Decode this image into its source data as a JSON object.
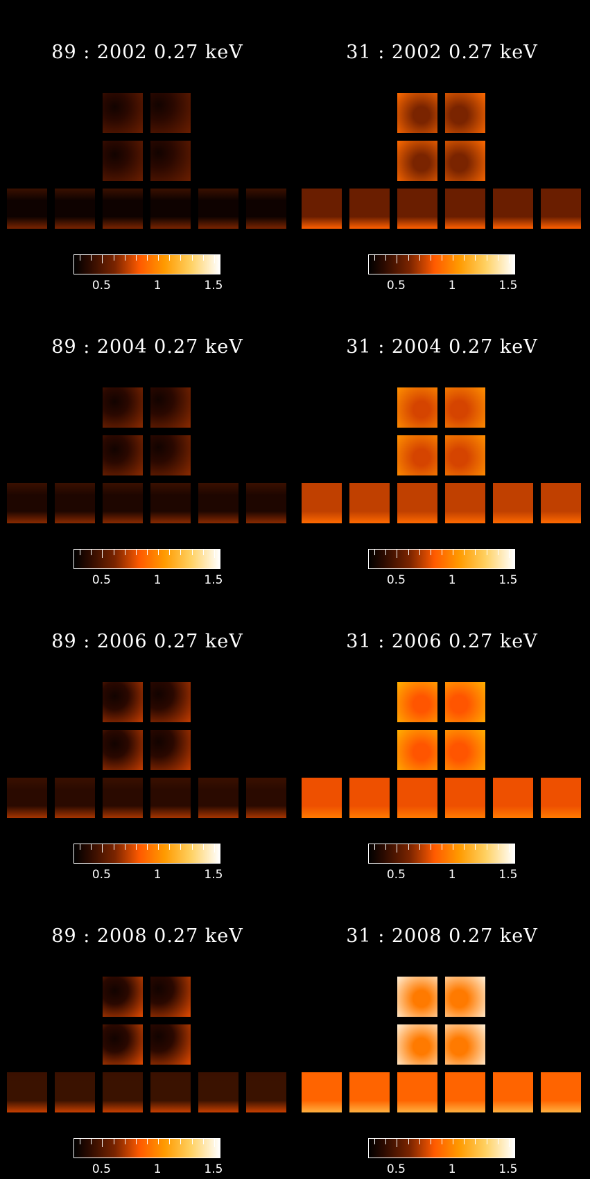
{
  "panels": [
    {
      "id": "p1",
      "title": "89 : 2002 0.27 keV",
      "scene": "dark",
      "stage": 0
    },
    {
      "id": "p2",
      "title": "31 : 2002 0.27 keV",
      "scene": "bright",
      "stage": 0
    },
    {
      "id": "p3",
      "title": "89 : 2004 0.27 keV",
      "scene": "dark",
      "stage": 1
    },
    {
      "id": "p4",
      "title": "31 : 2004 0.27 keV",
      "scene": "bright",
      "stage": 1
    },
    {
      "id": "p5",
      "title": "89 : 2006 0.27 keV",
      "scene": "dark",
      "stage": 2
    },
    {
      "id": "p6",
      "title": "31 : 2006 0.27 keV",
      "scene": "bright",
      "stage": 2
    },
    {
      "id": "p7",
      "title": "89 : 2008 0.27 keV",
      "scene": "dark",
      "stage": 3
    },
    {
      "id": "p8",
      "title": "31 : 2008 0.27 keV",
      "scene": "bright",
      "stage": 3
    }
  ],
  "colorbar": {
    "tick_labels": [
      "0.5",
      "1",
      "1.5"
    ],
    "range": [
      0.25,
      1.55
    ],
    "label_values": [
      0.5,
      1.0,
      1.5
    ]
  },
  "colors": {
    "background": "#000000",
    "text": "#ffffff",
    "low": "#000000",
    "mid": "#ff5a00",
    "high": "#ffffff"
  }
}
